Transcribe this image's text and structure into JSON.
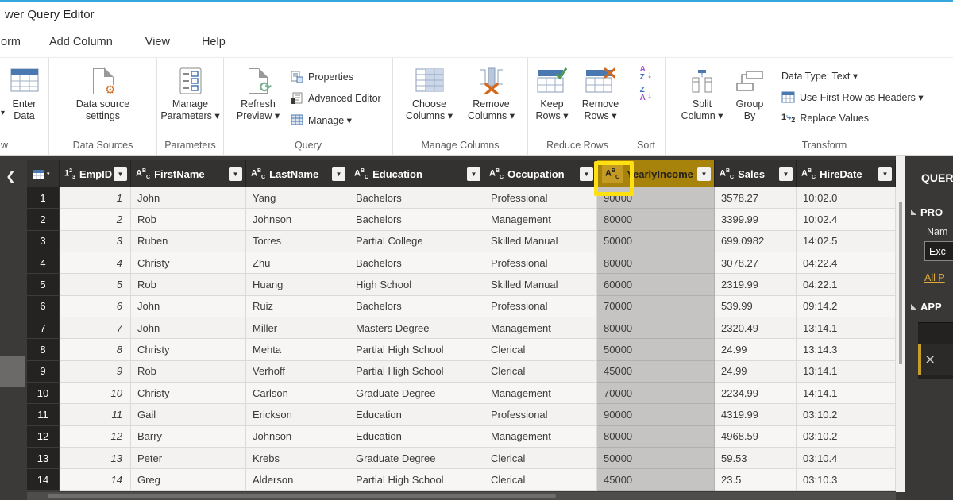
{
  "colors": {
    "accent_blue": "#35a7dd",
    "header_dark": "#333231",
    "selected_gold": "#a7830b",
    "highlight_yellow": "#ffe011",
    "link_gold": "#dcaa3c"
  },
  "titlebar": {
    "title": "wer Query Editor"
  },
  "menu": {
    "items": [
      "orm",
      "Add Column",
      "View",
      "Help"
    ]
  },
  "ribbon": {
    "clipped_dropdown_glyph": "▾",
    "clipped_group_caption": "w",
    "buttons": {
      "enter_data": [
        "Enter",
        "Data"
      ],
      "data_source_settings": [
        "Data source",
        "settings"
      ],
      "manage_parameters": [
        "Manage",
        "Parameters ▾"
      ],
      "refresh_preview": [
        "Refresh",
        "Preview ▾"
      ],
      "properties": "Properties",
      "advanced_editor": "Advanced Editor",
      "manage": "Manage ▾",
      "choose_columns": [
        "Choose",
        "Columns ▾"
      ],
      "remove_columns": [
        "Remove",
        "Columns ▾"
      ],
      "keep_rows": [
        "Keep",
        "Rows ▾"
      ],
      "remove_rows": [
        "Remove",
        "Rows ▾"
      ],
      "split_column": [
        "Split",
        "Column ▾"
      ],
      "group_by": [
        "Group",
        "By"
      ],
      "data_type": "Data Type: Text ▾",
      "use_first_row": "Use First Row as Headers ▾",
      "replace_values": "Replace Values"
    },
    "captions": [
      "Data Sources",
      "Parameters",
      "Query",
      "Manage Columns",
      "Reduce Rows",
      "Sort",
      "Transform"
    ]
  },
  "table": {
    "columns": [
      {
        "name": "EmpID",
        "type_glyph": "123",
        "selected": false
      },
      {
        "name": "FirstName",
        "type_glyph": "ABC",
        "selected": false
      },
      {
        "name": "LastName",
        "type_glyph": "ABC",
        "selected": false
      },
      {
        "name": "Education",
        "type_glyph": "ABC",
        "selected": false
      },
      {
        "name": "Occupation",
        "type_glyph": "ABC",
        "selected": false
      },
      {
        "name": "YearlyIncome",
        "type_glyph": "ABC",
        "selected": true
      },
      {
        "name": "Sales",
        "type_glyph": "ABC",
        "selected": false
      },
      {
        "name": "HireDate",
        "type_glyph": "ABC",
        "selected": false
      }
    ],
    "rows": [
      [
        "1",
        "John",
        "Yang",
        "Bachelors",
        "Professional",
        "90000",
        "3578.27",
        "10:02.0"
      ],
      [
        "2",
        "Rob",
        "Johnson",
        "Bachelors",
        "Management",
        "80000",
        "3399.99",
        "10:02.4"
      ],
      [
        "3",
        "Ruben",
        "Torres",
        "Partial College",
        "Skilled Manual",
        "50000",
        "699.0982",
        "14:02.5"
      ],
      [
        "4",
        "Christy",
        "Zhu",
        "Bachelors",
        "Professional",
        "80000",
        "3078.27",
        "04:22.4"
      ],
      [
        "5",
        "Rob",
        "Huang",
        "High School",
        "Skilled Manual",
        "60000",
        "2319.99",
        "04:22.1"
      ],
      [
        "6",
        "John",
        "Ruiz",
        "Bachelors",
        "Professional",
        "70000",
        "539.99",
        "09:14.2"
      ],
      [
        "7",
        "John",
        "Miller",
        "Masters Degree",
        "Management",
        "80000",
        "2320.49",
        "13:14.1"
      ],
      [
        "8",
        "Christy",
        "Mehta",
        "Partial High School",
        "Clerical",
        "50000",
        "24.99",
        "13:14.3"
      ],
      [
        "9",
        "Rob",
        "Verhoff",
        "Partial High School",
        "Clerical",
        "45000",
        "24.99",
        "13:14.1"
      ],
      [
        "10",
        "Christy",
        "Carlson",
        "Graduate Degree",
        "Management",
        "70000",
        "2234.99",
        "14:14.1"
      ],
      [
        "11",
        "Gail",
        "Erickson",
        "Education",
        "Professional",
        "90000",
        "4319.99",
        "03:10.2"
      ],
      [
        "12",
        "Barry",
        "Johnson",
        "Education",
        "Management",
        "80000",
        "4968.59",
        "03:10.2"
      ],
      [
        "13",
        "Peter",
        "Krebs",
        "Graduate Degree",
        "Clerical",
        "50000",
        "59.53",
        "03:10.4"
      ],
      [
        "14",
        "Greg",
        "Alderson",
        "Partial High School",
        "Clerical",
        "45000",
        "23.5",
        "03:10.3"
      ]
    ]
  },
  "side_panel": {
    "title_fragment": "QUER",
    "properties_header_fragment": "PRO",
    "name_label_fragment": "Nam",
    "name_value_fragment": "Exc",
    "all_properties_fragment": "All P",
    "applied_steps_fragment": "APP",
    "delete_step_glyph": "×"
  }
}
